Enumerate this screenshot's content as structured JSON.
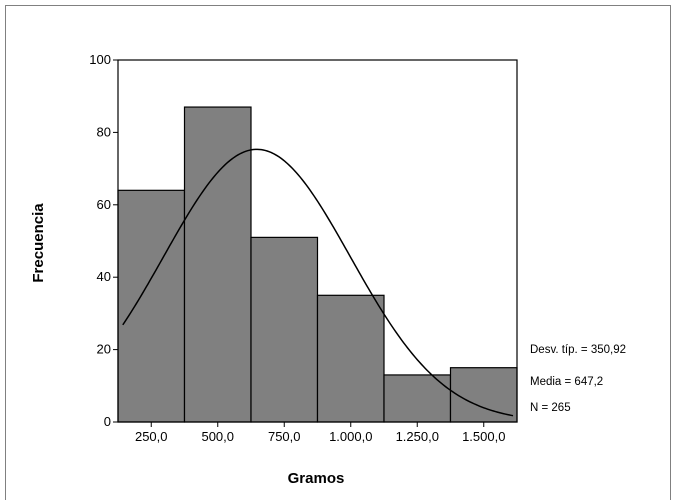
{
  "chart_data": {
    "type": "bar",
    "xlabel": "Gramos",
    "ylabel": "Frecuencia",
    "categories": [
      "250,0",
      "500,0",
      "750,0",
      "1.000,0",
      "1.250,0",
      "1.500,0"
    ],
    "values": [
      64,
      87,
      51,
      35,
      13,
      15
    ],
    "x_numeric": [
      250,
      500,
      750,
      1000,
      1250,
      1500
    ],
    "bin_width": 250,
    "xlim": [
      125,
      1625
    ],
    "ylim": [
      0,
      100
    ],
    "yticks": [
      0,
      20,
      40,
      60,
      80,
      100
    ],
    "bar_color": "#808080",
    "curve": {
      "type": "normal",
      "mean": 647.2,
      "sd": 350.92,
      "n": 265,
      "x_range": [
        143,
        1610
      ]
    },
    "stats": [
      "Desv. típ. = 350,92",
      "Media = 647,2",
      "N = 265"
    ],
    "grid": false,
    "legend": "none"
  }
}
